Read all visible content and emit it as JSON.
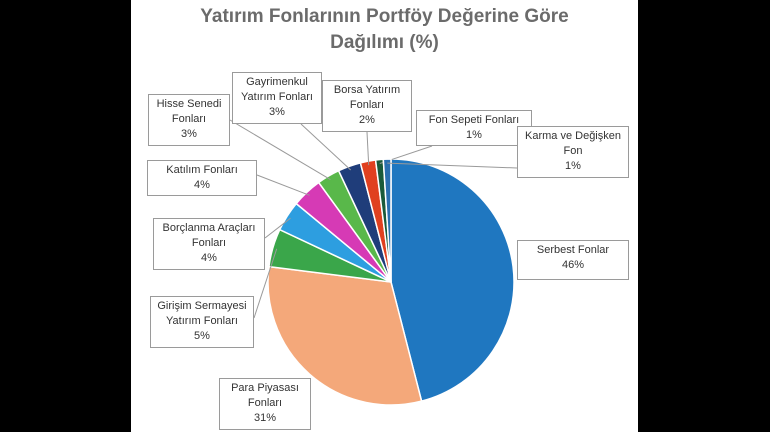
{
  "chart_data": {
    "type": "pie",
    "title_line1": "Yatırım Fonlarının Portföy Değerine Göre",
    "title_line2": "Dağılımı (%)",
    "unit": "%",
    "slices": [
      {
        "name_lines": [
          "Serbest Fonlar"
        ],
        "value": 46,
        "value_label": "46%",
        "color": "#1f77c0"
      },
      {
        "name_lines": [
          "Para Piyasası",
          "Fonları"
        ],
        "value": 31,
        "value_label": "31%",
        "color": "#f4a87a"
      },
      {
        "name_lines": [
          "Girişim Sermayesi",
          "Yatırım Fonları"
        ],
        "value": 5,
        "value_label": "5%",
        "color": "#3aa64a"
      },
      {
        "name_lines": [
          "Borçlanma Araçları",
          "Fonları"
        ],
        "value": 4,
        "value_label": "4%",
        "color": "#2d9ee0"
      },
      {
        "name_lines": [
          "Katılım Fonları"
        ],
        "value": 4,
        "value_label": "4%",
        "color": "#d63ab5"
      },
      {
        "name_lines": [
          "Hisse Senedi",
          "Fonları"
        ],
        "value": 3,
        "value_label": "3%",
        "color": "#59b84a"
      },
      {
        "name_lines": [
          "Gayrimenkul",
          "Yatırım Fonları"
        ],
        "value": 3,
        "value_label": "3%",
        "color": "#1f3d7a"
      },
      {
        "name_lines": [
          "Borsa Yatırım",
          "Fonları"
        ],
        "value": 2,
        "value_label": "2%",
        "color": "#e0401f"
      },
      {
        "name_lines": [
          "Fon Sepeti Fonları"
        ],
        "value": 1,
        "value_label": "1%",
        "color": "#1a5a3a"
      },
      {
        "name_lines": [
          "Karma ve Değişken",
          "Fon"
        ],
        "value": 1,
        "value_label": "1%",
        "color": "#2a6fb0"
      }
    ]
  }
}
